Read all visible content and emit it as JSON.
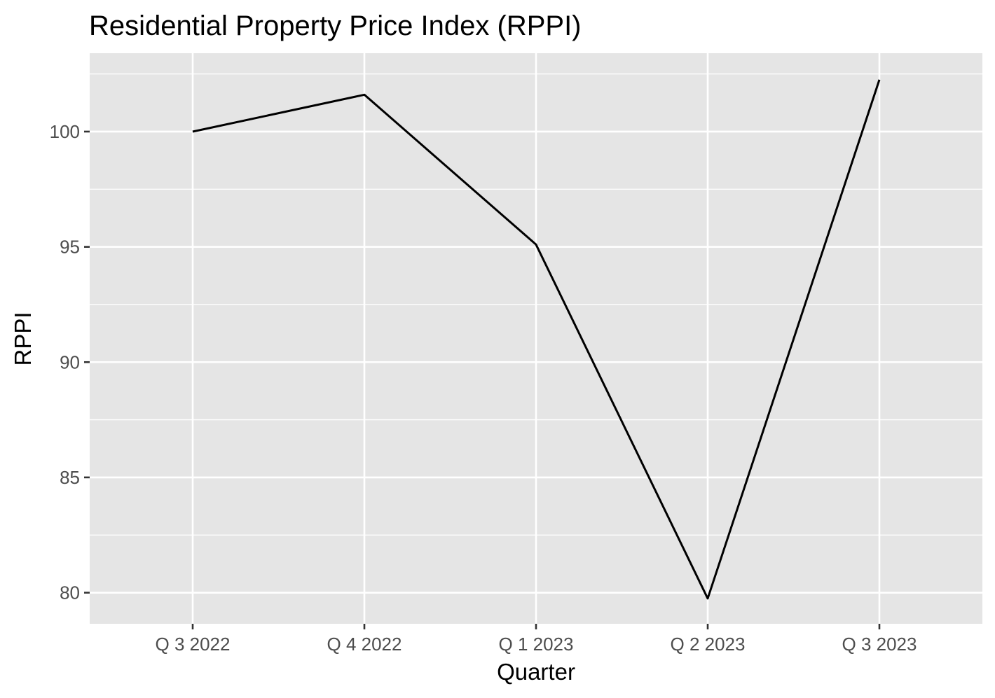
{
  "chart_data": {
    "type": "line",
    "title": "Residential Property Price Index (RPPI)",
    "xlabel": "Quarter",
    "ylabel": "RPPI",
    "categories": [
      "Q 3 2022",
      "Q 4 2022",
      "Q 1 2023",
      "Q 2 2023",
      "Q 3 2023"
    ],
    "series": [
      {
        "values": [
          100.0,
          101.6,
          95.1,
          79.75,
          102.25
        ]
      }
    ],
    "yticks": [
      80,
      85,
      90,
      95,
      100
    ],
    "ylim": [
      78.65,
      103.4
    ],
    "grid": true,
    "legend": "none",
    "colors": {
      "panel": "#e5e5e5",
      "grid": "#ffffff",
      "line": "#000000",
      "tick_text": "#4d4d4d"
    }
  }
}
